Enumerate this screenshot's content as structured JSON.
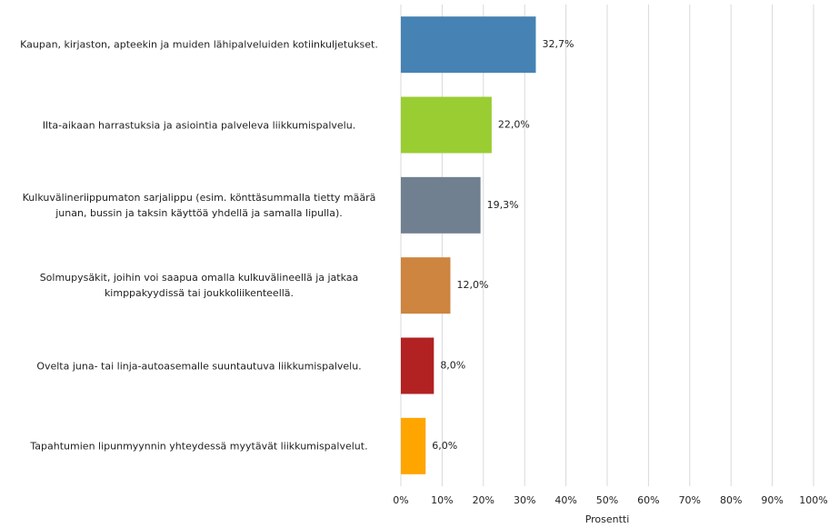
{
  "chart_data": {
    "type": "barh",
    "categories": [
      "Kaupan, kirjaston, apteekin ja muiden lähipalveluiden kotiinkuljetukset.",
      "Ilta-aikaan harrastuksia ja asiointia palveleva liikkumispalvelu.",
      "Kulkuvälineriippumaton sarjalippu (esim. könttäsummalla tietty määrä junan, bussin ja taksin käyttöä yhdellä ja samalla lipulla).",
      "Solmupysäkit, joihin voi saapua omalla kulkuvälineellä ja jatkaa kimppakyydissä tai joukkoliikenteellä.",
      "Ovelta juna- tai linja-autoasemalle suuntautuva liikkumispalvelu.",
      "Tapahtumien lipunmyynnin yhteydessä myytävät liikkumispalvelut."
    ],
    "values": [
      32.7,
      22.0,
      19.3,
      12.0,
      8.0,
      6.0
    ],
    "value_labels": [
      "32,7%",
      "22,0%",
      "19,3%",
      "12,0%",
      "8,0%",
      "6,0%"
    ],
    "colors": [
      "#4682b4",
      "#9acd32",
      "#708090",
      "#cd853f",
      "#b22222",
      "#ffa500"
    ],
    "xlabel": "Prosentti",
    "xlim": [
      0,
      100
    ],
    "xticks": [
      {
        "value": 0,
        "label": "0%"
      },
      {
        "value": 10,
        "label": "10%"
      },
      {
        "value": 20,
        "label": "20%"
      },
      {
        "value": 30,
        "label": "30%"
      },
      {
        "value": 40,
        "label": "40%"
      },
      {
        "value": 50,
        "label": "50%"
      },
      {
        "value": 60,
        "label": "60%"
      },
      {
        "value": 70,
        "label": "70%"
      },
      {
        "value": 80,
        "label": "80%"
      },
      {
        "value": 90,
        "label": "90%"
      },
      {
        "value": 100,
        "label": "100%"
      }
    ],
    "grid": true
  }
}
